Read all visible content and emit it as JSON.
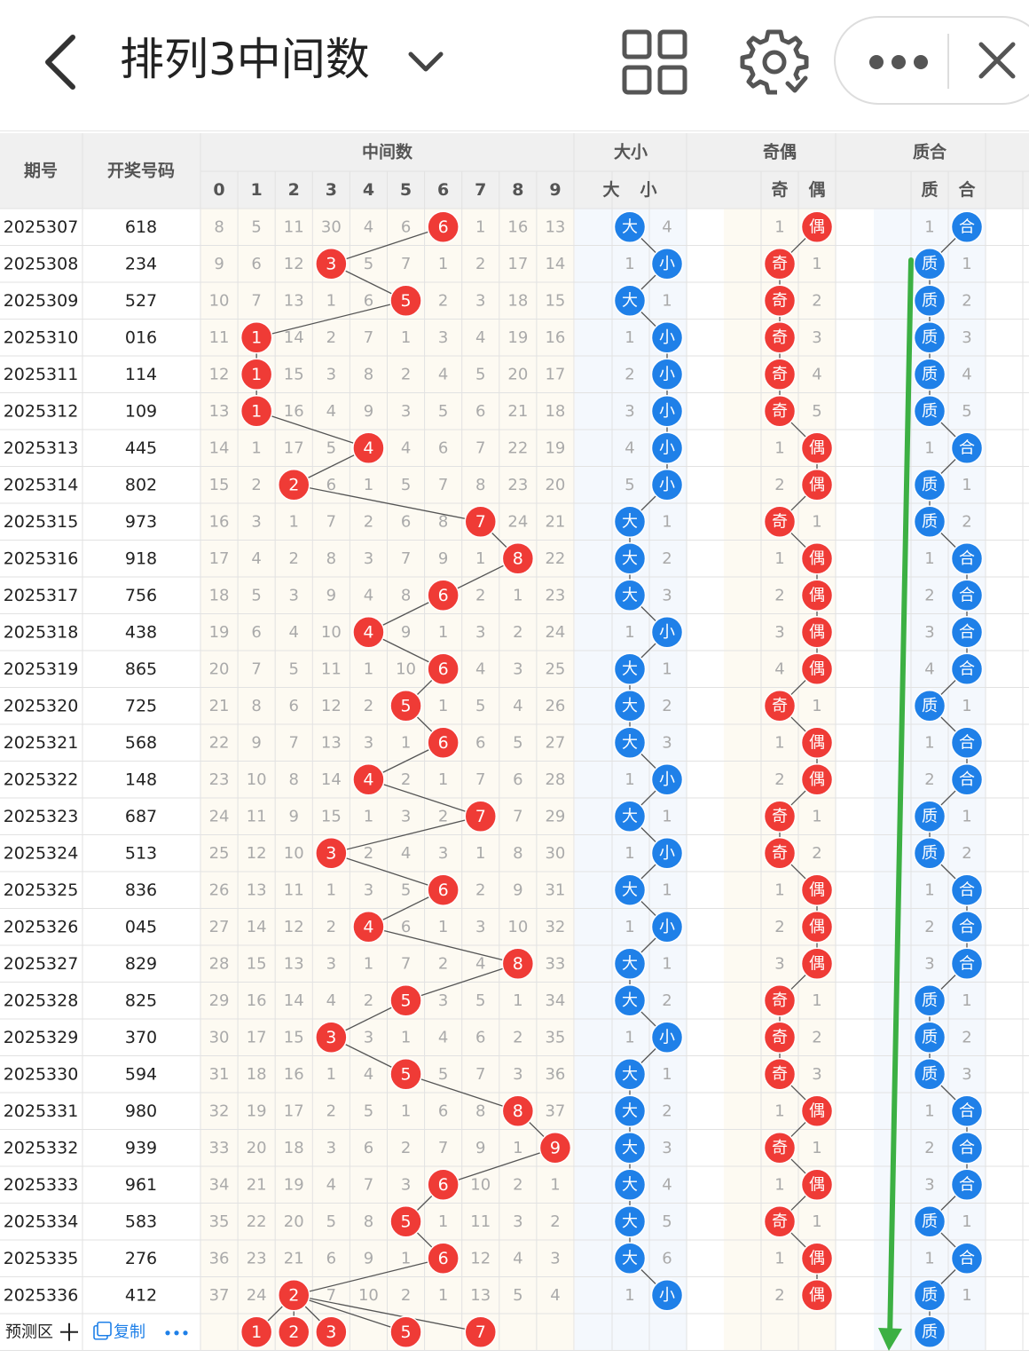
{
  "titlebar": {
    "title": "排列3中间数",
    "icons": [
      "back-arrow-icon",
      "chevron-down-icon",
      "grid-icon",
      "gear-icon",
      "more-dots-icon",
      "close-icon"
    ]
  },
  "table": {
    "headers": {
      "period": "期号",
      "draw": "开奖号码",
      "middle_group": "中间数",
      "size_group": "大小",
      "parity_group": "奇偶",
      "prime_group": "质合",
      "digits": [
        "0",
        "1",
        "2",
        "3",
        "4",
        "5",
        "6",
        "7",
        "8",
        "9"
      ],
      "size_cols": [
        "大",
        "小"
      ],
      "parity_cols": [
        "奇",
        "偶"
      ],
      "prime_cols": [
        "质",
        "合"
      ]
    },
    "rows": [
      {
        "period": "2025307",
        "draw": "618",
        "middle": 6,
        "miss": [
          8,
          5,
          11,
          30,
          4,
          6,
          6,
          1,
          16,
          13
        ],
        "big": "大",
        "small": "4",
        "odd": "1",
        "even": "偶",
        "prime": "1",
        "composite": "合"
      },
      {
        "period": "2025308",
        "draw": "234",
        "middle": 3,
        "miss": [
          9,
          6,
          12,
          3,
          5,
          7,
          1,
          2,
          17,
          14
        ],
        "big": "1",
        "small": "小",
        "odd": "奇",
        "even": "1",
        "prime": "质",
        "composite": "1"
      },
      {
        "period": "2025309",
        "draw": "527",
        "middle": 5,
        "miss": [
          10,
          7,
          13,
          1,
          6,
          5,
          2,
          3,
          18,
          15
        ],
        "big": "大",
        "small": "1",
        "odd": "奇",
        "even": "2",
        "prime": "质",
        "composite": "2"
      },
      {
        "period": "2025310",
        "draw": "016",
        "middle": 1,
        "miss": [
          11,
          1,
          14,
          2,
          7,
          1,
          3,
          4,
          19,
          16
        ],
        "big": "1",
        "small": "小",
        "odd": "奇",
        "even": "3",
        "prime": "质",
        "composite": "3"
      },
      {
        "period": "2025311",
        "draw": "114",
        "middle": 1,
        "miss": [
          12,
          1,
          15,
          3,
          8,
          2,
          4,
          5,
          20,
          17
        ],
        "big": "2",
        "small": "小",
        "odd": "奇",
        "even": "4",
        "prime": "质",
        "composite": "4"
      },
      {
        "period": "2025312",
        "draw": "109",
        "middle": 1,
        "miss": [
          13,
          1,
          16,
          4,
          9,
          3,
          5,
          6,
          21,
          18
        ],
        "big": "3",
        "small": "小",
        "odd": "奇",
        "even": "5",
        "prime": "质",
        "composite": "5"
      },
      {
        "period": "2025313",
        "draw": "445",
        "middle": 4,
        "miss": [
          14,
          1,
          17,
          5,
          4,
          4,
          6,
          7,
          22,
          19
        ],
        "big": "4",
        "small": "小",
        "odd": "1",
        "even": "偶",
        "prime": "1",
        "composite": "合"
      },
      {
        "period": "2025314",
        "draw": "802",
        "middle": 2,
        "miss": [
          15,
          2,
          2,
          6,
          1,
          5,
          7,
          8,
          23,
          20
        ],
        "big": "5",
        "small": "小",
        "odd": "2",
        "even": "偶",
        "prime": "质",
        "composite": "1"
      },
      {
        "period": "2025315",
        "draw": "973",
        "middle": 7,
        "miss": [
          16,
          3,
          1,
          7,
          2,
          6,
          8,
          7,
          24,
          21
        ],
        "big": "大",
        "small": "1",
        "odd": "奇",
        "even": "1",
        "prime": "质",
        "composite": "2"
      },
      {
        "period": "2025316",
        "draw": "918",
        "middle": 8,
        "miss": [
          17,
          4,
          2,
          8,
          3,
          7,
          9,
          1,
          8,
          22
        ],
        "big": "大",
        "small": "2",
        "odd": "1",
        "even": "偶",
        "prime": "1",
        "composite": "合"
      },
      {
        "period": "2025317",
        "draw": "756",
        "middle": 6,
        "miss": [
          18,
          5,
          3,
          9,
          4,
          8,
          6,
          2,
          1,
          23
        ],
        "big": "大",
        "small": "3",
        "odd": "2",
        "even": "偶",
        "prime": "2",
        "composite": "合"
      },
      {
        "period": "2025318",
        "draw": "438",
        "middle": 4,
        "miss": [
          19,
          6,
          4,
          10,
          4,
          9,
          1,
          3,
          2,
          24
        ],
        "big": "1",
        "small": "小",
        "odd": "3",
        "even": "偶",
        "prime": "3",
        "composite": "合"
      },
      {
        "period": "2025319",
        "draw": "865",
        "middle": 6,
        "miss": [
          20,
          7,
          5,
          11,
          1,
          10,
          6,
          4,
          3,
          25
        ],
        "big": "大",
        "small": "1",
        "odd": "4",
        "even": "偶",
        "prime": "4",
        "composite": "合"
      },
      {
        "period": "2025320",
        "draw": "725",
        "middle": 5,
        "miss": [
          21,
          8,
          6,
          12,
          2,
          5,
          1,
          5,
          4,
          26
        ],
        "big": "大",
        "small": "2",
        "odd": "奇",
        "even": "1",
        "prime": "质",
        "composite": "1"
      },
      {
        "period": "2025321",
        "draw": "568",
        "middle": 6,
        "miss": [
          22,
          9,
          7,
          13,
          3,
          1,
          6,
          6,
          5,
          27
        ],
        "big": "大",
        "small": "3",
        "odd": "1",
        "even": "偶",
        "prime": "1",
        "composite": "合"
      },
      {
        "period": "2025322",
        "draw": "148",
        "middle": 4,
        "miss": [
          23,
          10,
          8,
          14,
          4,
          2,
          1,
          7,
          6,
          28
        ],
        "big": "1",
        "small": "小",
        "odd": "2",
        "even": "偶",
        "prime": "2",
        "composite": "合"
      },
      {
        "period": "2025323",
        "draw": "687",
        "middle": 7,
        "miss": [
          24,
          11,
          9,
          15,
          1,
          3,
          2,
          7,
          7,
          29
        ],
        "big": "大",
        "small": "1",
        "odd": "奇",
        "even": "1",
        "prime": "质",
        "composite": "1"
      },
      {
        "period": "2025324",
        "draw": "513",
        "middle": 3,
        "miss": [
          25,
          12,
          10,
          3,
          2,
          4,
          3,
          1,
          8,
          30
        ],
        "big": "1",
        "small": "小",
        "odd": "奇",
        "even": "2",
        "prime": "质",
        "composite": "2"
      },
      {
        "period": "2025325",
        "draw": "836",
        "middle": 6,
        "miss": [
          26,
          13,
          11,
          1,
          3,
          5,
          6,
          2,
          9,
          31
        ],
        "big": "大",
        "small": "1",
        "odd": "1",
        "even": "偶",
        "prime": "1",
        "composite": "合"
      },
      {
        "period": "2025326",
        "draw": "045",
        "middle": 4,
        "miss": [
          27,
          14,
          12,
          2,
          4,
          6,
          1,
          3,
          10,
          32
        ],
        "big": "1",
        "small": "小",
        "odd": "2",
        "even": "偶",
        "prime": "2",
        "composite": "合"
      },
      {
        "period": "2025327",
        "draw": "829",
        "middle": 8,
        "miss": [
          28,
          15,
          13,
          3,
          1,
          7,
          2,
          4,
          8,
          33
        ],
        "big": "大",
        "small": "1",
        "odd": "3",
        "even": "偶",
        "prime": "3",
        "composite": "合"
      },
      {
        "period": "2025328",
        "draw": "825",
        "middle": 5,
        "miss": [
          29,
          16,
          14,
          4,
          2,
          5,
          3,
          5,
          1,
          34
        ],
        "big": "大",
        "small": "2",
        "odd": "奇",
        "even": "1",
        "prime": "质",
        "composite": "1"
      },
      {
        "period": "2025329",
        "draw": "370",
        "middle": 3,
        "miss": [
          30,
          17,
          15,
          3,
          3,
          1,
          4,
          6,
          2,
          35
        ],
        "big": "1",
        "small": "小",
        "odd": "奇",
        "even": "2",
        "prime": "质",
        "composite": "2"
      },
      {
        "period": "2025330",
        "draw": "594",
        "middle": 5,
        "miss": [
          31,
          18,
          16,
          1,
          4,
          5,
          5,
          7,
          3,
          36
        ],
        "big": "大",
        "small": "1",
        "odd": "奇",
        "even": "3",
        "prime": "质",
        "composite": "3"
      },
      {
        "period": "2025331",
        "draw": "980",
        "middle": 8,
        "miss": [
          32,
          19,
          17,
          2,
          5,
          1,
          6,
          8,
          8,
          37
        ],
        "big": "大",
        "small": "2",
        "odd": "1",
        "even": "偶",
        "prime": "1",
        "composite": "合"
      },
      {
        "period": "2025332",
        "draw": "939",
        "middle": 9,
        "miss": [
          33,
          20,
          18,
          3,
          6,
          2,
          7,
          9,
          1,
          9
        ],
        "big": "大",
        "small": "3",
        "odd": "奇",
        "even": "1",
        "prime": "2",
        "composite": "合"
      },
      {
        "period": "2025333",
        "draw": "961",
        "middle": 6,
        "miss": [
          34,
          21,
          19,
          4,
          7,
          3,
          6,
          10,
          2,
          1
        ],
        "big": "大",
        "small": "4",
        "odd": "1",
        "even": "偶",
        "prime": "3",
        "composite": "合"
      },
      {
        "period": "2025334",
        "draw": "583",
        "middle": 5,
        "miss": [
          35,
          22,
          20,
          5,
          8,
          5,
          1,
          11,
          3,
          2
        ],
        "big": "大",
        "small": "5",
        "odd": "奇",
        "even": "1",
        "prime": "质",
        "composite": "1"
      },
      {
        "period": "2025335",
        "draw": "276",
        "middle": 6,
        "miss": [
          36,
          23,
          21,
          6,
          9,
          1,
          6,
          12,
          4,
          3
        ],
        "big": "大",
        "small": "6",
        "odd": "1",
        "even": "偶",
        "prime": "1",
        "composite": "合"
      },
      {
        "period": "2025336",
        "draw": "412",
        "middle": 2,
        "miss": [
          37,
          24,
          2,
          7,
          10,
          2,
          1,
          13,
          5,
          4
        ],
        "big": "1",
        "small": "小",
        "odd": "2",
        "even": "偶",
        "prime": "质",
        "composite": "1"
      }
    ],
    "predict": {
      "label": "预测区",
      "copy_label": "复制",
      "digits": [
        1,
        2,
        3,
        5,
        7
      ],
      "prime": "质"
    }
  },
  "colors": {
    "red": "#ef3b36",
    "blue": "#1f80e8",
    "green": "#3cb043",
    "header_bg": "#f0f0f0",
    "grid": "#e2e2e2",
    "miss_text": "#aaaaaa"
  }
}
